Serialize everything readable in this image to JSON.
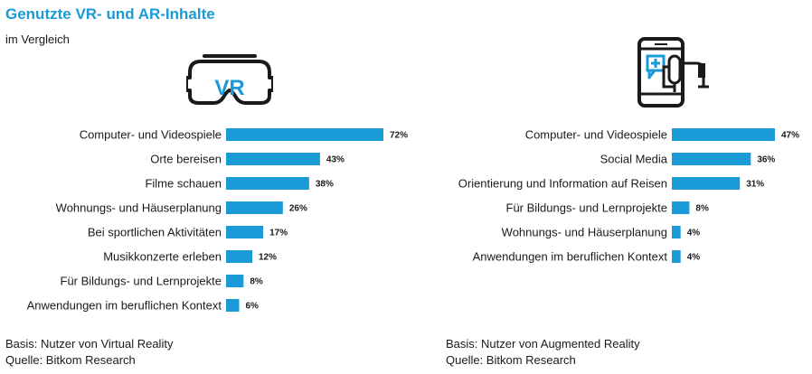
{
  "header": {
    "title": "Genutzte VR- und AR-Inhalte",
    "subtitle": "im Vergleich"
  },
  "colors": {
    "bar": "#1a9bd7",
    "title": "#1a9bd7",
    "icon": "#1a1a1a",
    "icon_accent": "#1a9bd7"
  },
  "icons": {
    "left": "vr-headset-icon",
    "right": "smartphone-ar-icon"
  },
  "chart_data": [
    {
      "type": "bar",
      "orientation": "horizontal",
      "icon_text": "VR",
      "categories": [
        "Computer- und Videospiele",
        "Orte bereisen",
        "Filme schauen",
        "Wohnungs- und Häuserplanung",
        "Bei sportlichen Aktivitäten",
        "Musikkonzerte erleben",
        "Für Bildungs- und Lernprojekte",
        "Anwendungen im beruflichen Kontext"
      ],
      "values": [
        72,
        43,
        38,
        26,
        17,
        12,
        8,
        6
      ],
      "value_labels": [
        "72%",
        "43%",
        "38%",
        "26%",
        "17%",
        "12%",
        "8%",
        "6%"
      ],
      "unit": "%",
      "xlim": [
        0,
        72
      ]
    },
    {
      "type": "bar",
      "orientation": "horizontal",
      "categories": [
        "Computer- und Videospiele",
        "Social Media",
        "Orientierung und Information auf Reisen",
        "Für Bildungs- und Lernprojekte",
        "Wohnungs- und Häuserplanung",
        "Anwendungen im beruflichen Kontext"
      ],
      "values": [
        47,
        36,
        31,
        8,
        4,
        4
      ],
      "value_labels": [
        "47%",
        "36%",
        "31%",
        "8%",
        "4%",
        "4%"
      ],
      "unit": "%",
      "xlim": [
        0,
        47
      ]
    }
  ],
  "footer": {
    "left": {
      "basis": "Basis: Nutzer von Virtual Reality",
      "source": "Quelle: Bitkom Research"
    },
    "right": {
      "basis": "Basis: Nutzer von Augmented Reality",
      "source": "Quelle: Bitkom Research"
    }
  }
}
